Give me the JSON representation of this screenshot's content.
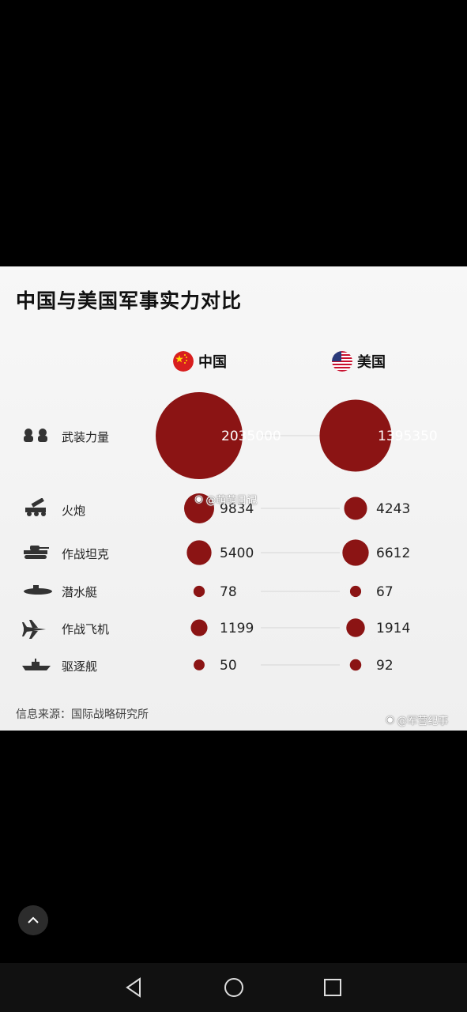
{
  "title": "中国与美国军事实力对比",
  "countries": [
    {
      "name": "中国",
      "flag": "china-flag-icon"
    },
    {
      "name": "美国",
      "flag": "usa-flag-icon"
    }
  ],
  "chart_data": {
    "type": "bubble",
    "title": "中国与美国军事实力对比",
    "categories": [
      "武装力量",
      "火炮",
      "作战坦克",
      "潜水艇",
      "作战飞机",
      "驱逐舰"
    ],
    "series": [
      {
        "name": "中国",
        "values": [
          2035000,
          9834,
          5400,
          78,
          1199,
          50
        ]
      },
      {
        "name": "美国",
        "values": [
          1395350,
          4243,
          6612,
          67,
          1914,
          92
        ]
      }
    ],
    "color": "#8b1414",
    "value_labels": [
      [
        "2035000",
        "9834",
        "5400",
        "78",
        "1199",
        "50"
      ],
      [
        "1395350",
        "4243",
        "6612",
        "67",
        "1914",
        "92"
      ]
    ]
  },
  "icons": [
    "soldiers-icon",
    "artillery-icon",
    "tank-icon",
    "submarine-icon",
    "jet-icon",
    "warship-icon"
  ],
  "source": "信息来源：国际战略研究所",
  "watermarks": {
    "center": "@萌萌日记",
    "bottom": "@军营纪事"
  }
}
